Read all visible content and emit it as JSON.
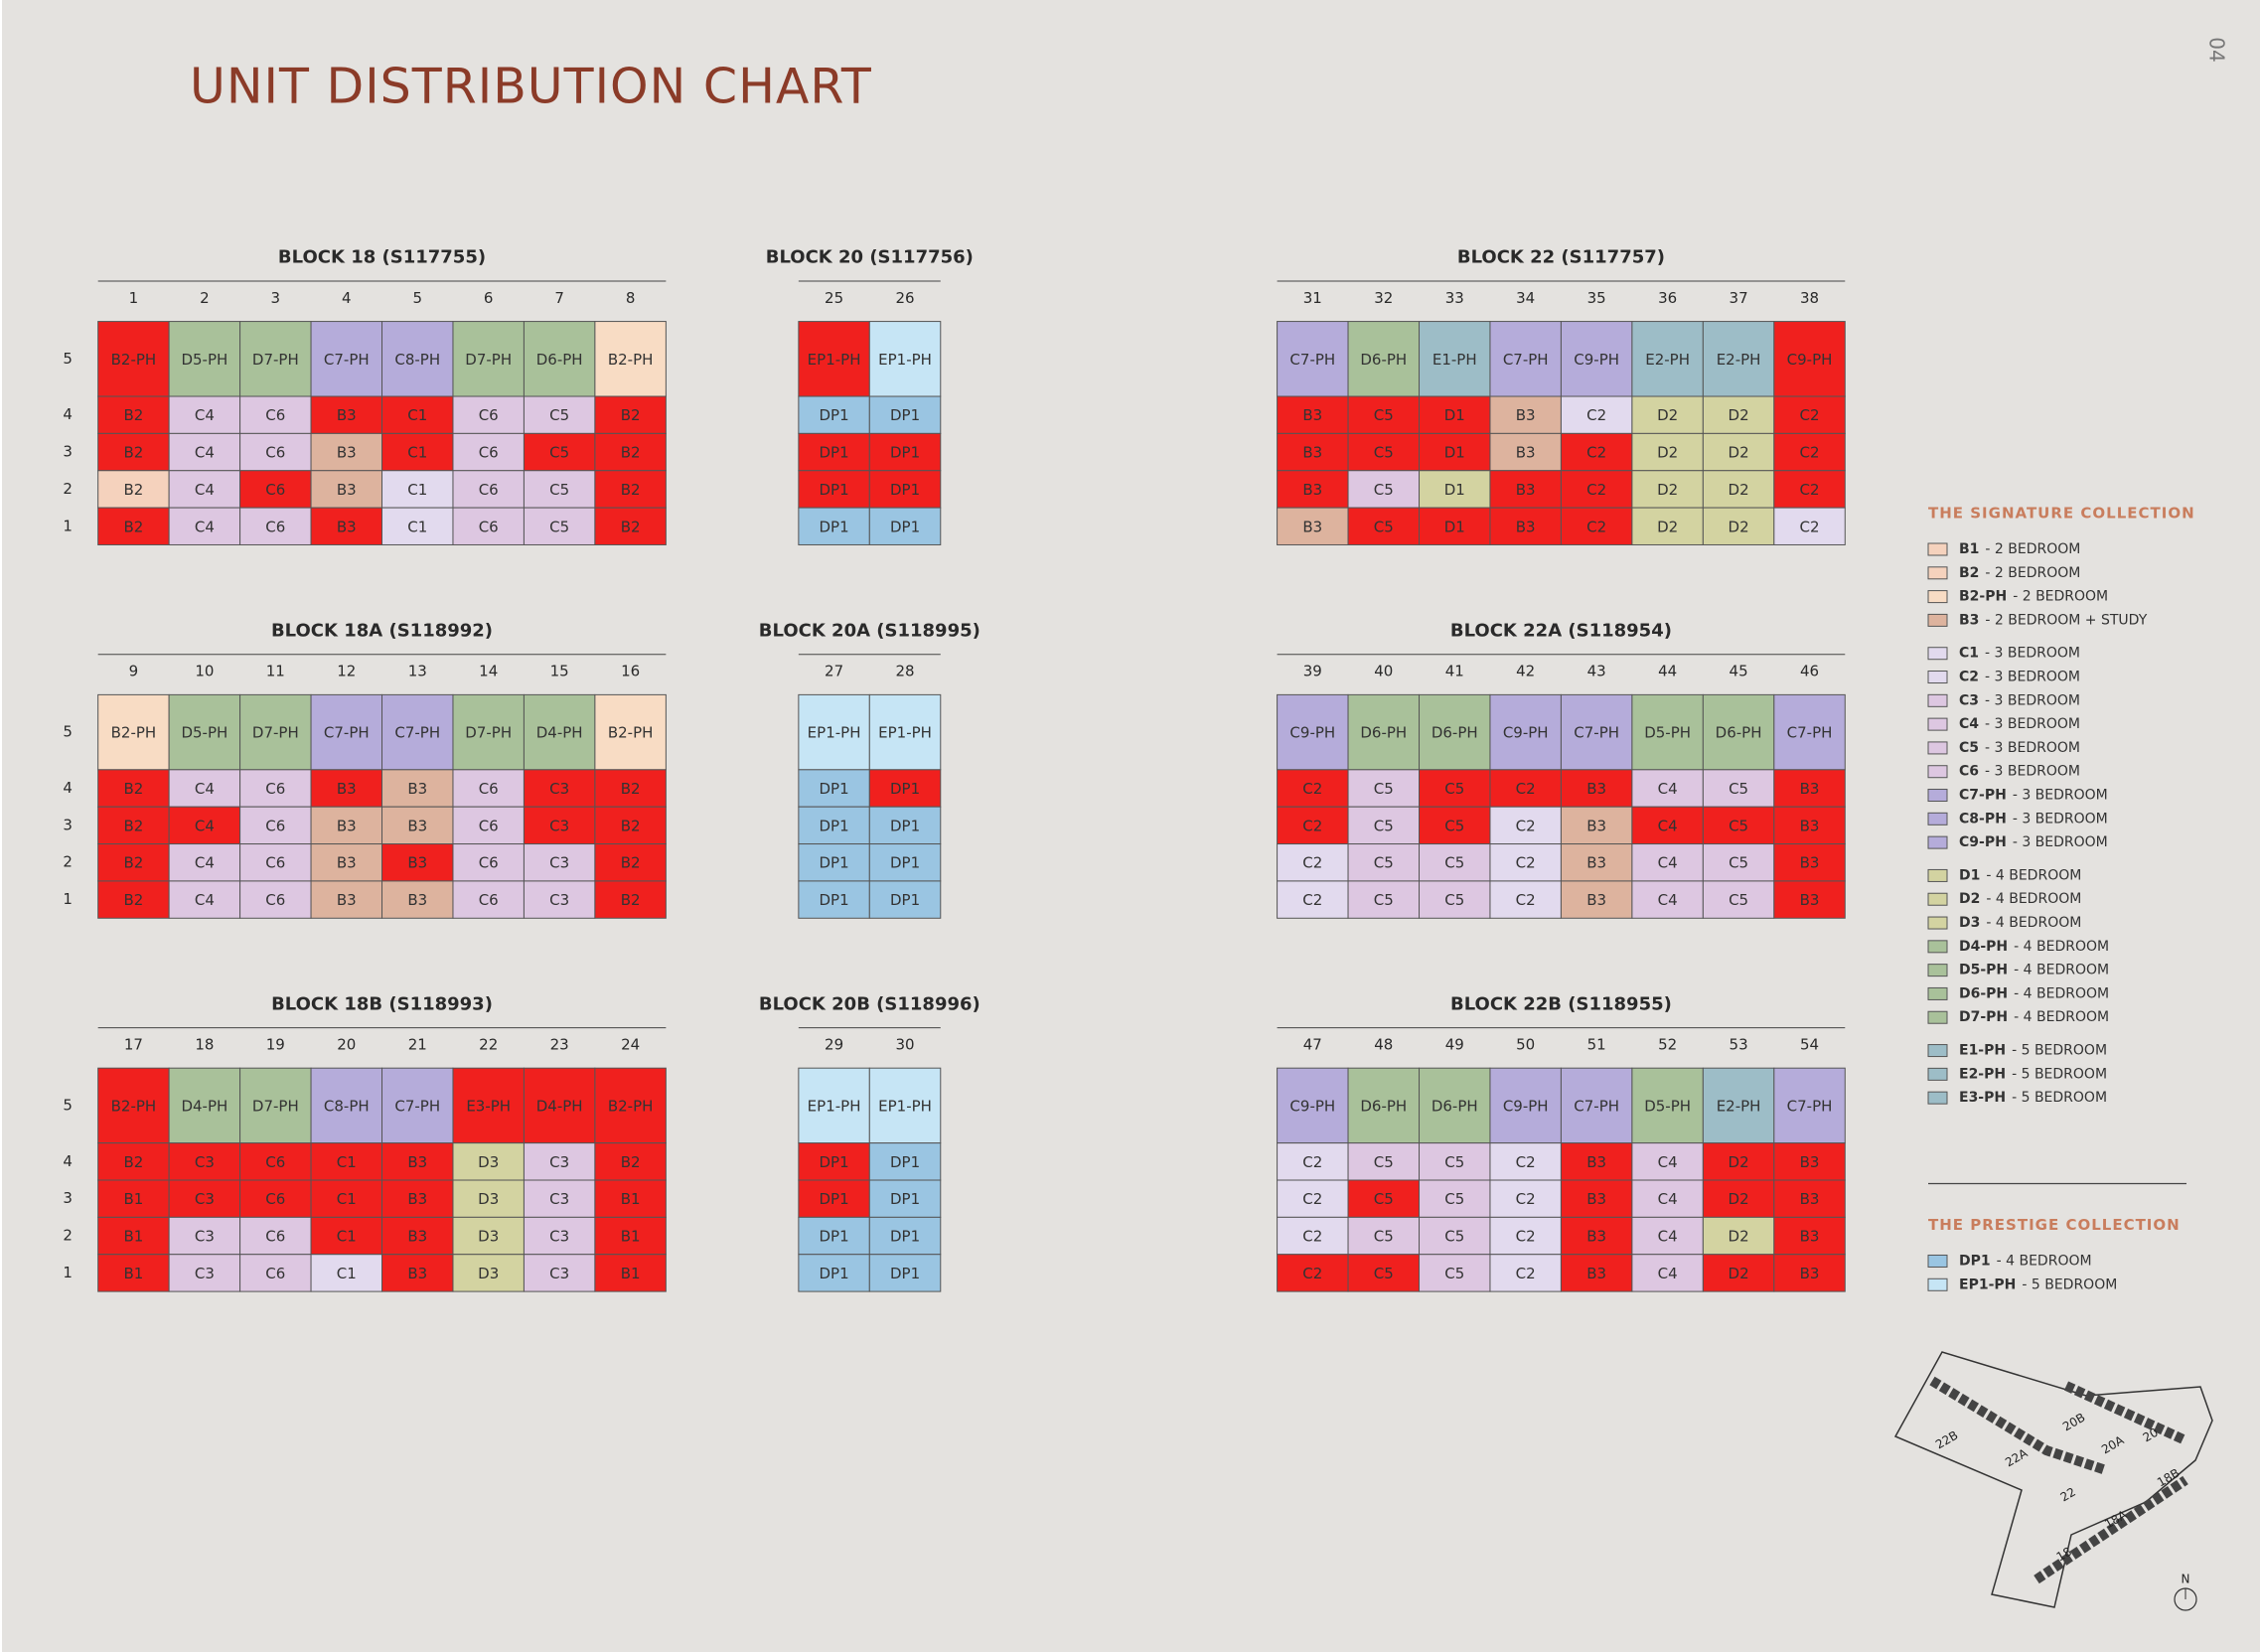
{
  "page_number": "04",
  "title": "UNIT DISTRIBUTION CHART",
  "sold_color": "#f0201e",
  "sold_text_color": "#b3141a",
  "blocks": [
    {
      "title": "BLOCK 18 (S117755)",
      "units": [
        "1",
        "2",
        "3",
        "4",
        "5",
        "6",
        "7",
        "8"
      ],
      "floors": [
        "5",
        "4",
        "3",
        "2",
        "1"
      ],
      "cells": [
        [
          "B2-PH",
          "D5-PH",
          "D7-PH",
          "C7-PH",
          "C8-PH",
          "D7-PH",
          "D6-PH",
          "B2-PH"
        ],
        [
          "B2",
          "C4",
          "C6",
          "B3",
          "C1",
          "C6",
          "C5",
          "B2"
        ],
        [
          "B2",
          "C4",
          "C6",
          "B3",
          "C1",
          "C6",
          "C5",
          "B2"
        ],
        [
          "B2",
          "C4",
          "C6",
          "B3",
          "C1",
          "C6",
          "C5",
          "B2"
        ],
        [
          "B2",
          "C4",
          "C6",
          "B3",
          "C1",
          "C6",
          "C5",
          "B2"
        ]
      ],
      "sold": [
        [
          1,
          0,
          0,
          0,
          0,
          0,
          0,
          0
        ],
        [
          1,
          0,
          0,
          1,
          1,
          0,
          0,
          1
        ],
        [
          1,
          0,
          0,
          0,
          1,
          0,
          1,
          1
        ],
        [
          0,
          0,
          1,
          0,
          0,
          0,
          0,
          1
        ],
        [
          1,
          0,
          0,
          1,
          0,
          0,
          0,
          1
        ]
      ]
    },
    {
      "title": "BLOCK 20 (S117756)",
      "units": [
        "25",
        "26"
      ],
      "cells": [
        [
          "EP1-PH",
          "EP1-PH"
        ],
        [
          "DP1",
          "DP1"
        ],
        [
          "DP1",
          "DP1"
        ],
        [
          "DP1",
          "DP1"
        ],
        [
          "DP1",
          "DP1"
        ]
      ],
      "sold": [
        [
          1,
          0
        ],
        [
          0,
          0
        ],
        [
          1,
          1
        ],
        [
          1,
          1
        ],
        [
          0,
          0
        ]
      ]
    },
    {
      "title": "BLOCK 22 (S117757)",
      "units": [
        "31",
        "32",
        "33",
        "34",
        "35",
        "36",
        "37",
        "38"
      ],
      "cells": [
        [
          "C7-PH",
          "D6-PH",
          "E1-PH",
          "C7-PH",
          "C9-PH",
          "E2-PH",
          "E2-PH",
          "C9-PH"
        ],
        [
          "B3",
          "C5",
          "D1",
          "B3",
          "C2",
          "D2",
          "D2",
          "C2"
        ],
        [
          "B3",
          "C5",
          "D1",
          "B3",
          "C2",
          "D2",
          "D2",
          "C2"
        ],
        [
          "B3",
          "C5",
          "D1",
          "B3",
          "C2",
          "D2",
          "D2",
          "C2"
        ],
        [
          "B3",
          "C5",
          "D1",
          "B3",
          "C2",
          "D2",
          "D2",
          "C2"
        ]
      ],
      "sold": [
        [
          0,
          0,
          0,
          0,
          0,
          0,
          0,
          1
        ],
        [
          1,
          1,
          1,
          0,
          0,
          0,
          0,
          1
        ],
        [
          1,
          1,
          1,
          0,
          1,
          0,
          0,
          1
        ],
        [
          1,
          0,
          0,
          1,
          1,
          0,
          0,
          1
        ],
        [
          0,
          1,
          1,
          1,
          1,
          0,
          0,
          0
        ]
      ]
    },
    {
      "title": "BLOCK 18A (S118992)",
      "units": [
        "9",
        "10",
        "11",
        "12",
        "13",
        "14",
        "15",
        "16"
      ],
      "floors": [
        "5",
        "4",
        "3",
        "2",
        "1"
      ],
      "cells": [
        [
          "B2-PH",
          "D5-PH",
          "D7-PH",
          "C7-PH",
          "C7-PH",
          "D7-PH",
          "D4-PH",
          "B2-PH"
        ],
        [
          "B2",
          "C4",
          "C6",
          "B3",
          "B3",
          "C6",
          "C3",
          "B2"
        ],
        [
          "B2",
          "C4",
          "C6",
          "B3",
          "B3",
          "C6",
          "C3",
          "B2"
        ],
        [
          "B2",
          "C4",
          "C6",
          "B3",
          "B3",
          "C6",
          "C3",
          "B2"
        ],
        [
          "B2",
          "C4",
          "C6",
          "B3",
          "B3",
          "C6",
          "C3",
          "B2"
        ]
      ],
      "sold": [
        [
          0,
          0,
          0,
          0,
          0,
          0,
          0,
          0
        ],
        [
          1,
          0,
          0,
          1,
          0,
          0,
          1,
          1
        ],
        [
          1,
          1,
          0,
          0,
          0,
          0,
          1,
          1
        ],
        [
          1,
          0,
          0,
          0,
          1,
          0,
          0,
          1
        ],
        [
          1,
          0,
          0,
          0,
          0,
          0,
          0,
          1
        ]
      ]
    },
    {
      "title": "BLOCK 20A (S118995)",
      "units": [
        "27",
        "28"
      ],
      "cells": [
        [
          "EP1-PH",
          "EP1-PH"
        ],
        [
          "DP1",
          "DP1"
        ],
        [
          "DP1",
          "DP1"
        ],
        [
          "DP1",
          "DP1"
        ],
        [
          "DP1",
          "DP1"
        ]
      ],
      "sold": [
        [
          0,
          0
        ],
        [
          0,
          1
        ],
        [
          0,
          0
        ],
        [
          0,
          0
        ],
        [
          0,
          0
        ]
      ]
    },
    {
      "title": "BLOCK 22A (S118954)",
      "units": [
        "39",
        "40",
        "41",
        "42",
        "43",
        "44",
        "45",
        "46"
      ],
      "cells": [
        [
          "C9-PH",
          "D6-PH",
          "D6-PH",
          "C9-PH",
          "C7-PH",
          "D5-PH",
          "D6-PH",
          "C7-PH"
        ],
        [
          "C2",
          "C5",
          "C5",
          "C2",
          "B3",
          "C4",
          "C5",
          "B3"
        ],
        [
          "C2",
          "C5",
          "C5",
          "C2",
          "B3",
          "C4",
          "C5",
          "B3"
        ],
        [
          "C2",
          "C5",
          "C5",
          "C2",
          "B3",
          "C4",
          "C5",
          "B3"
        ],
        [
          "C2",
          "C5",
          "C5",
          "C2",
          "B3",
          "C4",
          "C5",
          "B3"
        ]
      ],
      "sold": [
        [
          0,
          0,
          0,
          0,
          0,
          0,
          0,
          0
        ],
        [
          1,
          0,
          1,
          1,
          1,
          0,
          0,
          1
        ],
        [
          1,
          0,
          1,
          0,
          0,
          1,
          1,
          1
        ],
        [
          0,
          0,
          0,
          0,
          0,
          0,
          0,
          1
        ],
        [
          0,
          0,
          0,
          0,
          0,
          0,
          0,
          1
        ]
      ]
    },
    {
      "title": "BLOCK 18B (S118993)",
      "units": [
        "17",
        "18",
        "19",
        "20",
        "21",
        "22",
        "23",
        "24"
      ],
      "floors": [
        "5",
        "4",
        "3",
        "2",
        "1"
      ],
      "cells": [
        [
          "B2-PH",
          "D4-PH",
          "D7-PH",
          "C8-PH",
          "C7-PH",
          "E3-PH",
          "D4-PH",
          "B2-PH"
        ],
        [
          "B2",
          "C3",
          "C6",
          "C1",
          "B3",
          "D3",
          "C3",
          "B2"
        ],
        [
          "B1",
          "C3",
          "C6",
          "C1",
          "B3",
          "D3",
          "C3",
          "B1"
        ],
        [
          "B1",
          "C3",
          "C6",
          "C1",
          "B3",
          "D3",
          "C3",
          "B1"
        ],
        [
          "B1",
          "C3",
          "C6",
          "C1",
          "B3",
          "D3",
          "C3",
          "B1"
        ]
      ],
      "sold": [
        [
          1,
          0,
          0,
          0,
          0,
          1,
          1,
          1
        ],
        [
          1,
          1,
          1,
          1,
          1,
          0,
          0,
          1
        ],
        [
          1,
          1,
          1,
          1,
          1,
          0,
          0,
          1
        ],
        [
          1,
          0,
          0,
          1,
          1,
          0,
          0,
          1
        ],
        [
          1,
          0,
          0,
          0,
          1,
          0,
          0,
          1
        ]
      ]
    },
    {
      "title": "BLOCK 20B (S118996)",
      "units": [
        "29",
        "30"
      ],
      "cells": [
        [
          "EP1-PH",
          "EP1-PH"
        ],
        [
          "DP1",
          "DP1"
        ],
        [
          "DP1",
          "DP1"
        ],
        [
          "DP1",
          "DP1"
        ],
        [
          "DP1",
          "DP1"
        ]
      ],
      "sold": [
        [
          0,
          0
        ],
        [
          1,
          0
        ],
        [
          1,
          0
        ],
        [
          0,
          0
        ],
        [
          0,
          0
        ]
      ]
    },
    {
      "title": "BLOCK 22B (S118955)",
      "units": [
        "47",
        "48",
        "49",
        "50",
        "51",
        "52",
        "53",
        "54"
      ],
      "cells": [
        [
          "C9-PH",
          "D6-PH",
          "D6-PH",
          "C9-PH",
          "C7-PH",
          "D5-PH",
          "E2-PH",
          "C7-PH"
        ],
        [
          "C2",
          "C5",
          "C5",
          "C2",
          "B3",
          "C4",
          "D2",
          "B3"
        ],
        [
          "C2",
          "C5",
          "C5",
          "C2",
          "B3",
          "C4",
          "D2",
          "B3"
        ],
        [
          "C2",
          "C5",
          "C5",
          "C2",
          "B3",
          "C4",
          "D2",
          "B3"
        ],
        [
          "C2",
          "C5",
          "C5",
          "C2",
          "B3",
          "C4",
          "D2",
          "B3"
        ]
      ],
      "sold": [
        [
          0,
          0,
          0,
          0,
          0,
          0,
          0,
          0
        ],
        [
          0,
          0,
          0,
          0,
          1,
          0,
          1,
          1
        ],
        [
          0,
          1,
          0,
          0,
          1,
          0,
          1,
          1
        ],
        [
          0,
          0,
          0,
          0,
          1,
          0,
          0,
          1
        ],
        [
          1,
          1,
          0,
          0,
          1,
          0,
          1,
          1
        ]
      ]
    }
  ],
  "legend": [
    {
      "title": "THE SIGNATURE COLLECTION",
      "groups": [
        [
          {
            "code": "B1",
            "desc": "- 2 BEDROOM",
            "color": "#f5d2bd"
          },
          {
            "code": "B2",
            "desc": "- 2 BEDROOM",
            "color": "#f5d2bd"
          },
          {
            "code": "B2-PH",
            "desc": "- 2 BEDROOM",
            "color": "#f8dcc4"
          },
          {
            "code": "B3",
            "desc": "- 2 BEDROOM + STUDY",
            "color": "#ddb39e"
          }
        ],
        [
          {
            "code": "C1",
            "desc": "- 3 BEDROOM",
            "color": "#e2daee"
          },
          {
            "code": "C2",
            "desc": "- 3 BEDROOM",
            "color": "#e2daee"
          },
          {
            "code": "C3",
            "desc": "- 3 BEDROOM",
            "color": "#ddc7e1"
          },
          {
            "code": "C4",
            "desc": "- 3 BEDROOM",
            "color": "#ddc7e1"
          },
          {
            "code": "C5",
            "desc": "- 3 BEDROOM",
            "color": "#ddc7e1"
          },
          {
            "code": "C6",
            "desc": "- 3 BEDROOM",
            "color": "#ddc7e1"
          },
          {
            "code": "C7-PH",
            "desc": "- 3 BEDROOM",
            "color": "#b5acda"
          },
          {
            "code": "C8-PH",
            "desc": "- 3 BEDROOM",
            "color": "#b5acda"
          },
          {
            "code": "C9-PH",
            "desc": "- 3 BEDROOM",
            "color": "#b5acda"
          }
        ],
        [
          {
            "code": "D1",
            "desc": "- 4 BEDROOM",
            "color": "#d3d3a1"
          },
          {
            "code": "D2",
            "desc": "- 4 BEDROOM",
            "color": "#d3d3a1"
          },
          {
            "code": "D3",
            "desc": "- 4 BEDROOM",
            "color": "#d3d3a1"
          },
          {
            "code": "D4-PH",
            "desc": "- 4 BEDROOM",
            "color": "#a9c19a"
          },
          {
            "code": "D5-PH",
            "desc": "- 4 BEDROOM",
            "color": "#a9c19a"
          },
          {
            "code": "D6-PH",
            "desc": "- 4 BEDROOM",
            "color": "#a9c19a"
          },
          {
            "code": "D7-PH",
            "desc": "- 4 BEDROOM",
            "color": "#a9c19a"
          }
        ],
        [
          {
            "code": "E1-PH",
            "desc": "- 5 BEDROOM",
            "color": "#9dbdc7"
          },
          {
            "code": "E2-PH",
            "desc": "- 5 BEDROOM",
            "color": "#9dbdc7"
          },
          {
            "code": "E3-PH",
            "desc": "- 5 BEDROOM",
            "color": "#9dbdc7"
          }
        ]
      ]
    },
    {
      "title": "THE PRESTIGE COLLECTION",
      "groups": [
        [
          {
            "code": "DP1",
            "desc": "- 4 BEDROOM",
            "color": "#9ac5e2"
          },
          {
            "code": "EP1-PH",
            "desc": "- 5 BEDROOM",
            "color": "#c6e5f5"
          }
        ]
      ]
    }
  ],
  "site_map": {
    "labels": [
      "22B",
      "22A",
      "22",
      "20B",
      "20A",
      "20",
      "18B",
      "18A",
      "18"
    ],
    "north": "N"
  }
}
